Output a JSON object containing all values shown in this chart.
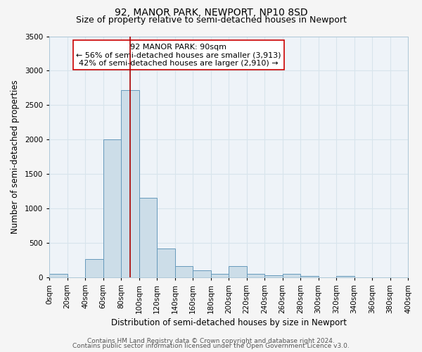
{
  "title": "92, MANOR PARK, NEWPORT, NP10 8SD",
  "subtitle": "Size of property relative to semi-detached houses in Newport",
  "xlabel": "Distribution of semi-detached houses by size in Newport",
  "ylabel": "Number of semi-detached properties",
  "bin_edges": [
    0,
    20,
    40,
    60,
    80,
    100,
    120,
    140,
    160,
    180,
    200,
    220,
    240,
    260,
    280,
    300,
    320,
    340,
    360,
    380,
    400
  ],
  "bar_heights": [
    55,
    0,
    270,
    2000,
    2720,
    1150,
    420,
    165,
    100,
    55,
    165,
    55,
    30,
    55,
    25,
    0,
    20,
    0,
    0,
    0
  ],
  "bar_color": "#ccdde8",
  "bar_edge_color": "#6699bb",
  "property_value": 90,
  "vline_color": "#aa0000",
  "annotation_title": "92 MANOR PARK: 90sqm",
  "annotation_line1": "← 56% of semi-detached houses are smaller (3,913)",
  "annotation_line2": "42% of semi-detached houses are larger (2,910) →",
  "annotation_box_edge_color": "#cc0000",
  "annotation_box_face_color": "#ffffff",
  "ylim": [
    0,
    3500
  ],
  "yticks": [
    0,
    500,
    1000,
    1500,
    2000,
    2500,
    3000,
    3500
  ],
  "footer1": "Contains HM Land Registry data © Crown copyright and database right 2024.",
  "footer2": "Contains public sector information licensed under the Open Government Licence v3.0.",
  "fig_background_color": "#f5f5f5",
  "plot_background_color": "#eef3f8",
  "grid_color": "#d8e4ec",
  "title_fontsize": 10,
  "subtitle_fontsize": 9,
  "axis_label_fontsize": 8.5,
  "tick_fontsize": 7.5,
  "annotation_fontsize": 8,
  "footer_fontsize": 6.5
}
